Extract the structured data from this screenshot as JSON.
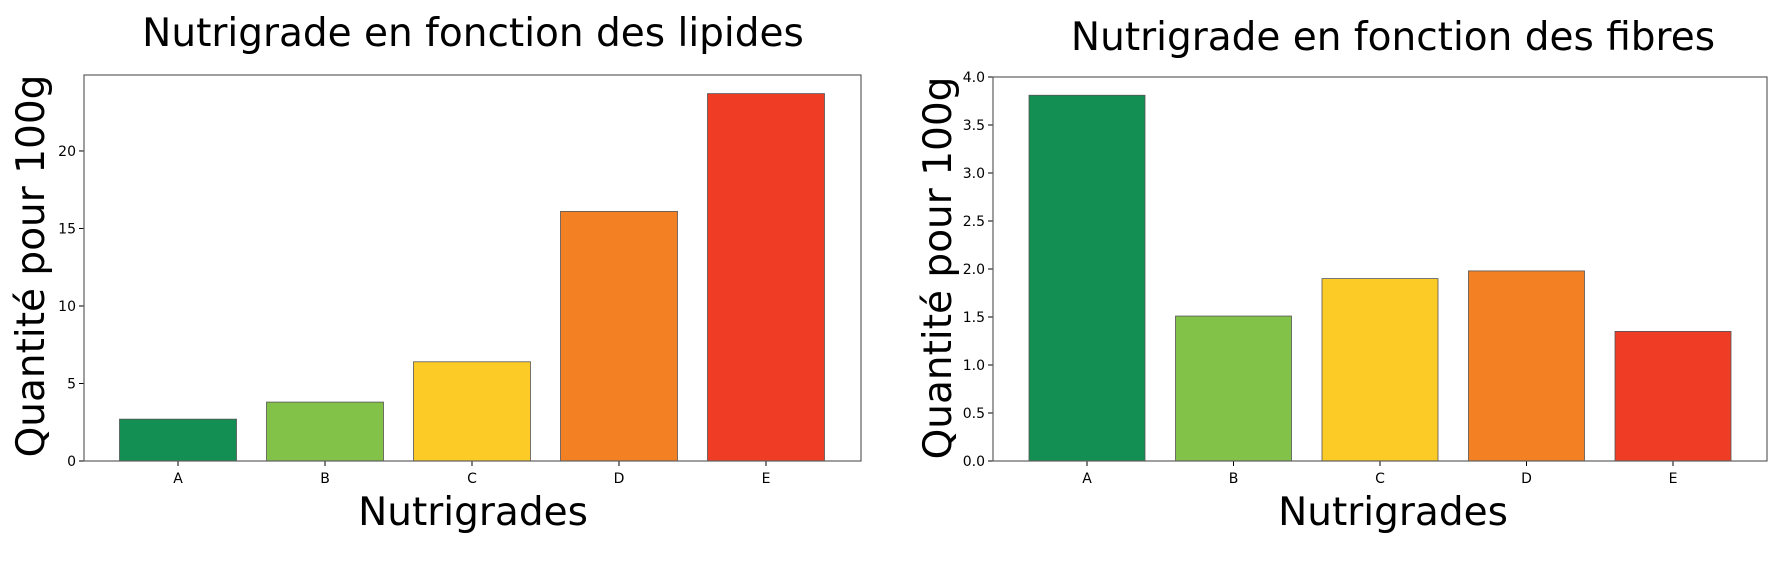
{
  "chart_data": [
    {
      "type": "bar",
      "title": "Nutrigrade en fonction des lipides",
      "xlabel": "Nutrigrades",
      "ylabel": "Quantité pour 100g",
      "categories": [
        "A",
        "B",
        "C",
        "D",
        "E"
      ],
      "values": [
        2.7,
        3.8,
        6.4,
        16.1,
        23.7
      ],
      "colors": [
        "#138f54",
        "#82c248",
        "#fdcb26",
        "#f38124",
        "#ee3d24"
      ],
      "ylim": [
        0,
        24.9
      ],
      "yticks": [
        0,
        5,
        10,
        15,
        20
      ],
      "ytick_labels": [
        "0",
        "5",
        "10",
        "15",
        "20"
      ],
      "grid": false,
      "legend": "none"
    },
    {
      "type": "bar",
      "title": "Nutrigrade en fonction des fibres",
      "xlabel": "Nutrigrades",
      "ylabel": "Quantité pour 100g",
      "categories": [
        "A",
        "B",
        "C",
        "D",
        "E"
      ],
      "values": [
        3.81,
        1.51,
        1.9,
        1.98,
        1.35
      ],
      "colors": [
        "#138f54",
        "#82c248",
        "#fdcb26",
        "#f38124",
        "#ee3d24"
      ],
      "ylim": [
        0,
        4.0
      ],
      "yticks": [
        0,
        0.5,
        1,
        1.5,
        2,
        2.5,
        3,
        3.5,
        4
      ],
      "ytick_labels": [
        "0.0",
        "0.5",
        "1.0",
        "1.5",
        "2.0",
        "2.5",
        "3.0",
        "3.5",
        "4.0"
      ],
      "grid": false,
      "legend": "none"
    }
  ]
}
